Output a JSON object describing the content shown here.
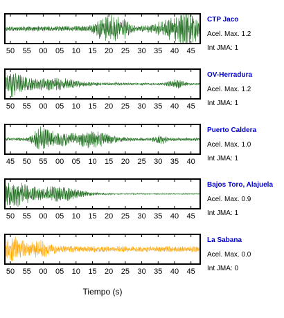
{
  "chart_data": {
    "type": "line",
    "xlabel": "Tiempo (s)",
    "panels": [
      {
        "station": "CTP Jaco",
        "accel_text": "Acel. Max. 1.2",
        "jma_text": "Int JMA: 1",
        "color": "#1a6b1a",
        "tick_labels": [
          "50",
          "55",
          "00",
          "05",
          "10",
          "15",
          "20",
          "25",
          "30",
          "35",
          "40",
          "45"
        ],
        "waveform": {
          "seed": 11,
          "amp": 0.35,
          "bursts": [
            [
              0.52,
              0.06,
              0.85
            ],
            [
              0.6,
              0.05,
              0.55
            ],
            [
              0.88,
              0.1,
              0.75
            ],
            [
              0.95,
              0.05,
              0.9
            ]
          ],
          "noise": 0.22,
          "cycles": 1400
        }
      },
      {
        "station": "OV-Herradura",
        "accel_text": "Acel. Max. 1.2",
        "jma_text": "Int JMA: 1",
        "color": "#1a6b1a",
        "tick_labels": [
          "50",
          "55",
          "00",
          "05",
          "10",
          "15",
          "20",
          "25",
          "30",
          "35",
          "40",
          "45"
        ],
        "waveform": {
          "seed": 23,
          "amp": 0.3,
          "bursts": [
            [
              0.03,
              0.08,
              0.95
            ],
            [
              0.25,
              0.12,
              0.45
            ],
            [
              0.88,
              0.04,
              0.35
            ]
          ],
          "decay": 1.0,
          "noise": 0.08,
          "cycles": 1100
        }
      },
      {
        "station": "Puerto Caldera",
        "accel_text": "Acel. Max. 1.0",
        "jma_text": "Int JMA: 1",
        "color": "#1a6b1a",
        "tick_labels": [
          "45",
          "50",
          "55",
          "00",
          "05",
          "10",
          "15",
          "20",
          "25",
          "30",
          "35",
          "40"
        ],
        "waveform": {
          "seed": 37,
          "amp": 0.3,
          "bursts": [
            [
              0.19,
              0.05,
              0.95
            ],
            [
              0.45,
              0.1,
              0.7
            ],
            [
              0.28,
              0.08,
              0.45
            ],
            [
              0.8,
              0.03,
              0.4
            ]
          ],
          "noise": 0.15,
          "cycles": 1300
        }
      },
      {
        "station": "Bajos Toro, Alajuela",
        "accel_text": "Acel. Max. 0.9",
        "jma_text": "Int JMA: 1",
        "color": "#1a6b1a",
        "tick_labels": [
          "50",
          "55",
          "00",
          "05",
          "10",
          "15",
          "20",
          "25",
          "30",
          "35",
          "40",
          "45"
        ],
        "waveform": {
          "seed": 51,
          "amp": 0.3,
          "bursts": [
            [
              0.05,
              0.1,
              0.95
            ],
            [
              0.28,
              0.12,
              0.6
            ]
          ],
          "decay": 1.4,
          "noise": 0.05,
          "cycles": 1200
        }
      },
      {
        "station": "La Sabana",
        "accel_text": "Acel. Max. 0.0",
        "jma_text": "Int JMA: 0",
        "color": "#ffa500",
        "tick_labels": [
          "50",
          "55",
          "00",
          "05",
          "10",
          "15",
          "20",
          "25",
          "30",
          "35",
          "40",
          "45"
        ],
        "waveform": {
          "seed": 67,
          "amp": 0.3,
          "bursts": [
            [
              0.04,
              0.06,
              0.95
            ],
            [
              0.18,
              0.06,
              0.6
            ]
          ],
          "noise": 0.28,
          "cycles": 1400
        }
      }
    ]
  }
}
